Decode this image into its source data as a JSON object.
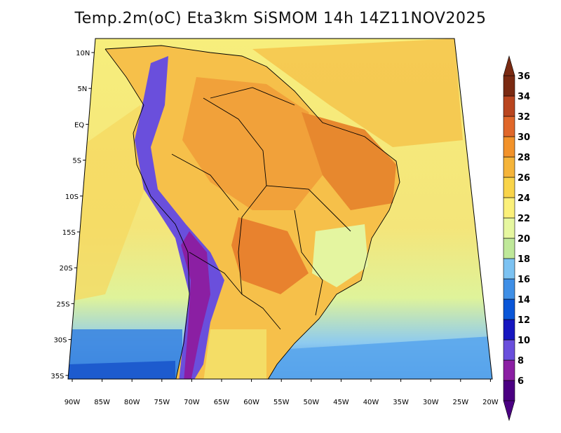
{
  "title": "Temp.2m(oC) Eta3km SiSMOM 14h 14Z11NOV2025",
  "lat_labels": [
    "10N",
    "5N",
    "EQ",
    "5S",
    "10S",
    "15S",
    "20S",
    "25S",
    "30S",
    "35S"
  ],
  "lon_labels": [
    "90W",
    "85W",
    "80W",
    "75W",
    "70W",
    "65W",
    "60W",
    "55W",
    "50W",
    "45W",
    "40W",
    "35W",
    "30W",
    "25W",
    "20W"
  ],
  "colorbar": {
    "labels": [
      "36",
      "34",
      "32",
      "30",
      "28",
      "26",
      "24",
      "22",
      "20",
      "18",
      "16",
      "14",
      "12",
      "10",
      "8",
      "6"
    ],
    "colors": [
      "#4b0082",
      "#8b1fa3",
      "#6a4fdc",
      "#1616c0",
      "#0a56d8",
      "#3f8fe6",
      "#7cc2f2",
      "#bfe89a",
      "#e6f7a0",
      "#fbf07a",
      "#f9d44a",
      "#f5b43a",
      "#f2922a",
      "#e0672a",
      "#b9451f",
      "#7a2a12"
    ]
  }
}
